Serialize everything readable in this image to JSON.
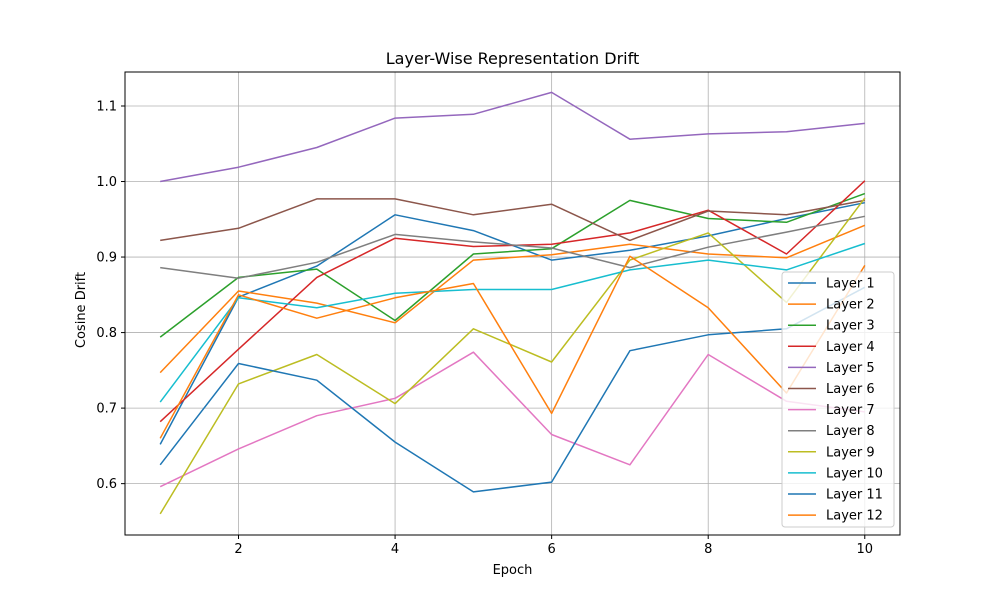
{
  "chart_data": {
    "type": "line",
    "title": "Layer-Wise Representation Drift",
    "xlabel": "Epoch",
    "ylabel": "Cosine Drift",
    "x": [
      1,
      2,
      3,
      4,
      5,
      6,
      7,
      8,
      9,
      10
    ],
    "xlim": [
      0.55,
      10.45
    ],
    "ylim": [
      0.532,
      1.145
    ],
    "xticks": [
      2,
      4,
      6,
      8,
      10
    ],
    "yticks": [
      0.6,
      0.7,
      0.8,
      0.9,
      1.0,
      1.1
    ],
    "ytick_labels": [
      "0.6",
      "0.7",
      "0.8",
      "0.9",
      "1.0",
      "1.1"
    ],
    "grid": true,
    "legend_position": "lower-right",
    "series": [
      {
        "name": "Layer 1",
        "color": "#1f77b4",
        "values": [
          0.652,
          0.847,
          0.888,
          0.956,
          0.935,
          0.896,
          0.909,
          0.928,
          0.951,
          0.972
        ]
      },
      {
        "name": "Layer 2",
        "color": "#ff7f0e",
        "values": [
          0.747,
          0.855,
          0.839,
          0.813,
          0.896,
          0.903,
          0.917,
          0.904,
          0.899,
          0.942
        ]
      },
      {
        "name": "Layer 3",
        "color": "#2ca02c",
        "values": [
          0.794,
          0.873,
          0.884,
          0.816,
          0.904,
          0.911,
          0.975,
          0.951,
          0.946,
          0.984
        ]
      },
      {
        "name": "Layer 4",
        "color": "#d62728",
        "values": [
          0.682,
          0.778,
          0.873,
          0.925,
          0.914,
          0.917,
          0.932,
          0.962,
          0.904,
          1.001
        ]
      },
      {
        "name": "Layer 5",
        "color": "#9467bd",
        "values": [
          1.0,
          1.019,
          1.045,
          1.084,
          1.089,
          1.118,
          1.056,
          1.063,
          1.066,
          1.077
        ]
      },
      {
        "name": "Layer 6",
        "color": "#8c564b",
        "values": [
          0.922,
          0.938,
          0.977,
          0.977,
          0.956,
          0.97,
          0.922,
          0.961,
          0.956,
          0.975
        ]
      },
      {
        "name": "Layer 7",
        "color": "#e377c2",
        "values": [
          0.596,
          0.646,
          0.69,
          0.713,
          0.774,
          0.665,
          0.625,
          0.771,
          0.709,
          0.695
        ]
      },
      {
        "name": "Layer 8",
        "color": "#7f7f7f",
        "values": [
          0.886,
          0.872,
          0.893,
          0.93,
          0.92,
          0.912,
          0.886,
          0.913,
          0.933,
          0.954
        ]
      },
      {
        "name": "Layer 9",
        "color": "#bcbd22",
        "values": [
          0.56,
          0.732,
          0.771,
          0.706,
          0.805,
          0.761,
          0.896,
          0.932,
          0.84,
          0.978
        ]
      },
      {
        "name": "Layer 10",
        "color": "#17becf",
        "values": [
          0.708,
          0.846,
          0.833,
          0.852,
          0.857,
          0.857,
          0.883,
          0.896,
          0.883,
          0.918
        ]
      },
      {
        "name": "Layer 11",
        "color": "#1f77b4",
        "values": [
          0.625,
          0.759,
          0.737,
          0.655,
          0.589,
          0.602,
          0.776,
          0.797,
          0.805,
          0.86
        ]
      },
      {
        "name": "Layer 12",
        "color": "#ff7f0e",
        "values": [
          0.66,
          0.85,
          0.819,
          0.846,
          0.865,
          0.693,
          0.901,
          0.833,
          0.72,
          0.889
        ]
      }
    ]
  }
}
